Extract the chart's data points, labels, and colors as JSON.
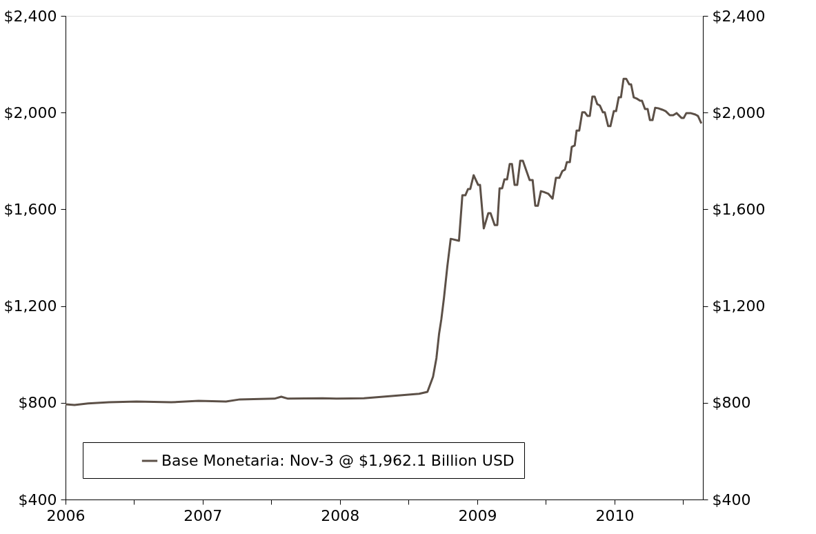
{
  "chart_data": {
    "type": "line",
    "xlim": [
      "2006-01-01",
      "2010-08-24"
    ],
    "xticks": [
      {
        "value": "2006-01-01",
        "label": "2006"
      },
      {
        "value": "2006-07-02",
        "label": null
      },
      {
        "value": "2007-01-01",
        "label": "2007"
      },
      {
        "value": "2007-07-02",
        "label": null
      },
      {
        "value": "2008-01-01",
        "label": "2008"
      },
      {
        "value": "2008-07-02",
        "label": null
      },
      {
        "value": "2009-01-01",
        "label": "2009"
      },
      {
        "value": "2009-07-02",
        "label": null
      },
      {
        "value": "2010-01-01",
        "label": "2010"
      },
      {
        "value": "2010-07-02",
        "label": null
      }
    ],
    "ylim": [
      400,
      2400
    ],
    "yticks": [
      {
        "value": 400,
        "label": "$400"
      },
      {
        "value": 800,
        "label": "$800"
      },
      {
        "value": 1200,
        "label": "$1,200"
      },
      {
        "value": 1600,
        "label": "$1,600"
      },
      {
        "value": 2000,
        "label": "$2,000"
      },
      {
        "value": 2400,
        "label": "$2,400"
      }
    ],
    "y2lim": [
      400,
      2400
    ],
    "y2ticks": [
      {
        "value": 400,
        "label": "$400"
      },
      {
        "value": 800,
        "label": "$800"
      },
      {
        "value": 1200,
        "label": "$1,200"
      },
      {
        "value": 1600,
        "label": "$1,600"
      },
      {
        "value": 2000,
        "label": "$2,000"
      },
      {
        "value": 2400,
        "label": "$2,400"
      }
    ],
    "grid": false,
    "legend": "bottom",
    "marker": "none",
    "line_style": "solid",
    "series": [
      {
        "name": "Base Monetaria: Nov-3 @ $1,962.1 Billion USD",
        "color": "#5c5047",
        "x": [
          "2006-01-01",
          "2006-01-25",
          "2006-03-02",
          "2006-04-27",
          "2006-07-09",
          "2006-10-09",
          "2006-12-21",
          "2007-03-04",
          "2007-04-10",
          "2007-07-11",
          "2007-07-29",
          "2007-08-16",
          "2007-11-16",
          "2007-12-23",
          "2008-03-05",
          "2008-05-18",
          "2008-07-30",
          "2008-08-21",
          "2008-09-05",
          "2008-09-14",
          "2008-09-21",
          "2008-09-27",
          "2008-10-04",
          "2008-10-13",
          "2008-10-22",
          "2008-11-13",
          "2008-11-22",
          "2008-11-30",
          "2008-12-07",
          "2008-12-13",
          "2008-12-22",
          "2009-01-03",
          "2009-01-08",
          "2009-01-18",
          "2009-01-30",
          "2009-02-05",
          "2009-02-16",
          "2009-02-23",
          "2009-03-01",
          "2009-03-08",
          "2009-03-14",
          "2009-03-21",
          "2009-03-28",
          "2009-04-03",
          "2009-04-10",
          "2009-04-17",
          "2009-04-25",
          "2009-05-02",
          "2009-05-11",
          "2009-05-20",
          "2009-05-28",
          "2009-06-04",
          "2009-06-11",
          "2009-06-19",
          "2009-06-26",
          "2009-07-09",
          "2009-07-20",
          "2009-07-29",
          "2009-08-07",
          "2009-08-15",
          "2009-08-22",
          "2009-08-27",
          "2009-09-04",
          "2009-09-09",
          "2009-09-17",
          "2009-09-22",
          "2009-09-29",
          "2009-10-07",
          "2009-10-14",
          "2009-10-21",
          "2009-10-27",
          "2009-11-03",
          "2009-11-09",
          "2009-11-16",
          "2009-11-23",
          "2009-12-01",
          "2009-12-06",
          "2009-12-15",
          "2009-12-21",
          "2009-12-30",
          "2010-01-05",
          "2010-01-12",
          "2010-01-18",
          "2010-01-25",
          "2010-02-01",
          "2010-02-09",
          "2010-02-14",
          "2010-02-21",
          "2010-03-01",
          "2010-03-10",
          "2010-03-15",
          "2010-03-23",
          "2010-03-30",
          "2010-04-05",
          "2010-04-12",
          "2010-04-19",
          "2010-04-27",
          "2010-05-08",
          "2010-05-17",
          "2010-05-28",
          "2010-06-06",
          "2010-06-15",
          "2010-06-28",
          "2010-07-04",
          "2010-07-11",
          "2010-07-22",
          "2010-08-04",
          "2010-08-11",
          "2010-08-20"
        ],
        "values": [
          794,
          791,
          797,
          802,
          805,
          802,
          808,
          805,
          814,
          817,
          825,
          817,
          819,
          817,
          819,
          828,
          837,
          845,
          908,
          985,
          1085,
          1145,
          1233,
          1364,
          1478,
          1470,
          1658,
          1658,
          1684,
          1684,
          1741,
          1701,
          1701,
          1521,
          1584,
          1584,
          1535,
          1535,
          1687,
          1687,
          1724,
          1724,
          1787,
          1787,
          1701,
          1701,
          1801,
          1801,
          1761,
          1721,
          1721,
          1615,
          1615,
          1675,
          1672,
          1664,
          1644,
          1730,
          1730,
          1758,
          1764,
          1795,
          1795,
          1858,
          1864,
          1926,
          1926,
          2001,
          2001,
          1986,
          1986,
          2066,
          2066,
          2035,
          2029,
          2001,
          2001,
          1944,
          1944,
          2006,
          2006,
          2063,
          2063,
          2140,
          2140,
          2117,
          2117,
          2063,
          2058,
          2049,
          2049,
          2015,
          2015,
          1969,
          1969,
          2020,
          2018,
          2012,
          2006,
          1989,
          1989,
          1998,
          1978,
          1978,
          1998,
          1998,
          1992,
          1986,
          1955
        ]
      }
    ]
  }
}
